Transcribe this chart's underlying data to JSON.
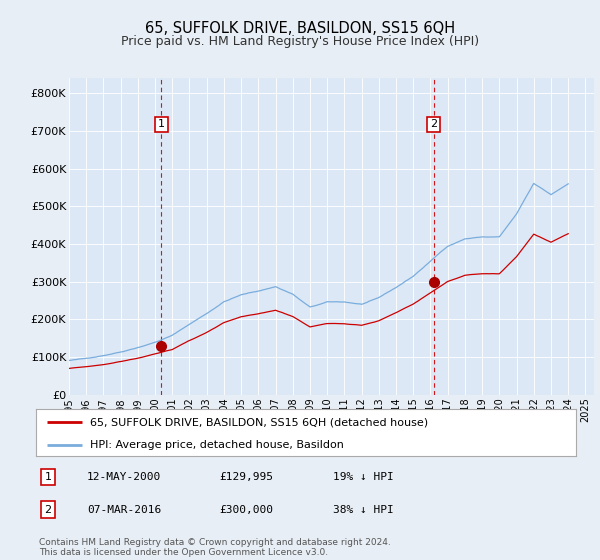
{
  "title": "65, SUFFOLK DRIVE, BASILDON, SS15 6QH",
  "subtitle": "Price paid vs. HM Land Registry's House Price Index (HPI)",
  "background_color": "#e8eef5",
  "plot_bg_color": "#dce8f5",
  "yticks": [
    0,
    100000,
    200000,
    300000,
    400000,
    500000,
    600000,
    700000,
    800000
  ],
  "ytick_labels": [
    "£0",
    "£100K",
    "£200K",
    "£300K",
    "£400K",
    "£500K",
    "£600K",
    "£700K",
    "£800K"
  ],
  "xlim_start": 1995.0,
  "xlim_end": 2025.5,
  "ylim": [
    0,
    840000
  ],
  "purchases": [
    {
      "date_num": 2000.36,
      "price": 129995,
      "label": "1"
    },
    {
      "date_num": 2016.18,
      "price": 300000,
      "label": "2"
    }
  ],
  "vline_color": "#cc0000",
  "purchase_marker_color": "#aa0000",
  "purchase_label_box_color": "#cc0000",
  "hpi_line_color": "#7aaddd",
  "price_line_color": "#cc0000",
  "legend_label_price": "65, SUFFOLK DRIVE, BASILDON, SS15 6QH (detached house)",
  "legend_label_hpi": "HPI: Average price, detached house, Basildon",
  "table_entries": [
    {
      "num": "1",
      "date": "12-MAY-2000",
      "price": "£129,995",
      "pct": "19% ↓ HPI"
    },
    {
      "num": "2",
      "date": "07-MAR-2016",
      "price": "£300,000",
      "pct": "38% ↓ HPI"
    }
  ],
  "footer": "Contains HM Land Registry data © Crown copyright and database right 2024.\nThis data is licensed under the Open Government Licence v3.0."
}
